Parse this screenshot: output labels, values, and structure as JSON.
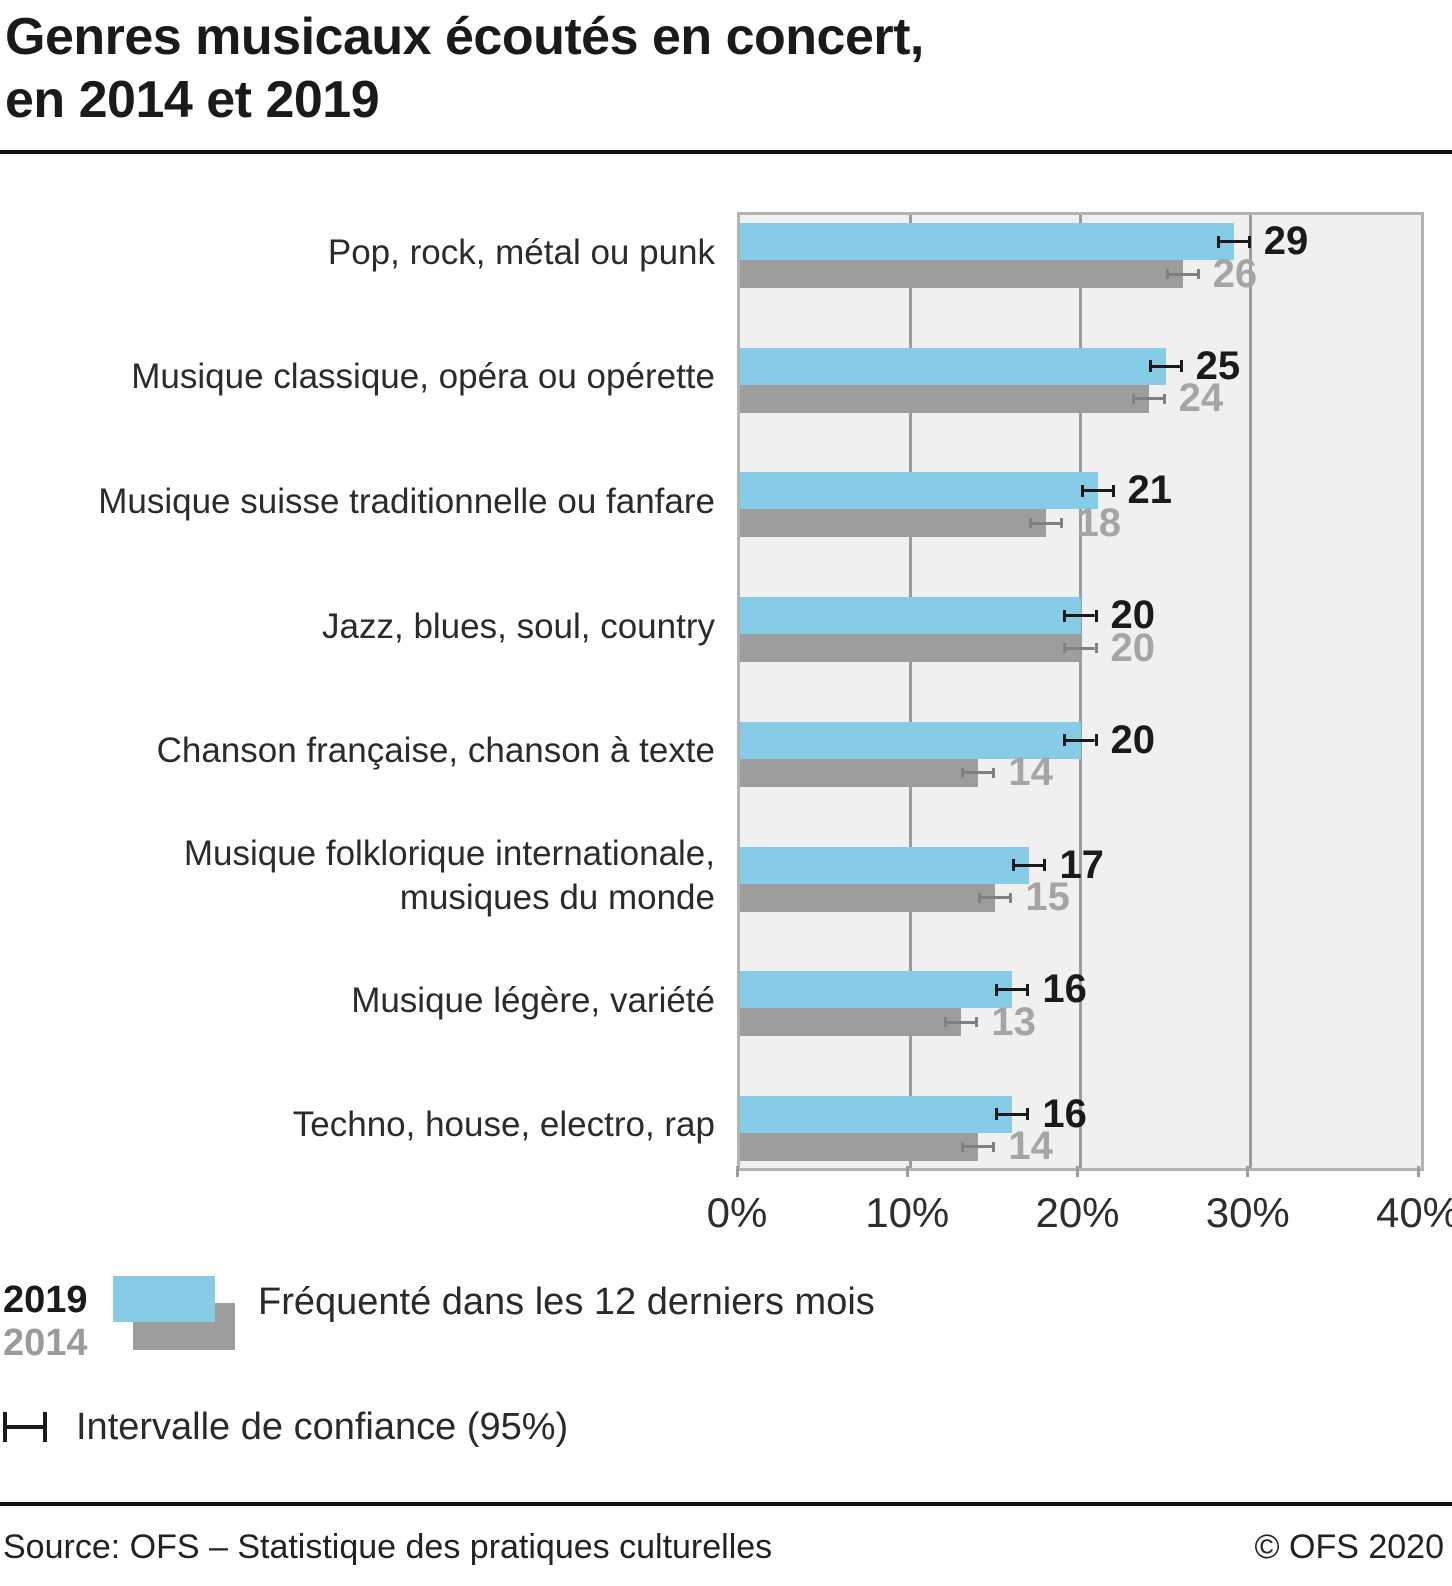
{
  "header": {
    "title_line1": "Genres musicaux écoutés en concert,",
    "title_line2": "en 2014 et 2019"
  },
  "chart_data": {
    "type": "bar",
    "orientation": "horizontal",
    "title": "Genres musicaux écoutés en concert, en 2014 et 2019",
    "categories": [
      "Pop, rock, métal ou punk",
      "Musique classique, opéra ou opérette",
      "Musique suisse traditionnelle ou fanfare",
      "Jazz, blues, soul, country",
      "Chanson française, chanson à texte",
      "Musique folklorique internationale,\nmusiques du monde",
      "Musique légère, variété",
      "Techno, house, electro, rap"
    ],
    "series": [
      {
        "name": "2019",
        "values": [
          29,
          25,
          21,
          20,
          20,
          17,
          16,
          16
        ],
        "color": "#86cce6",
        "ci_half_width": 1.0,
        "errorbar_color": "#1a1a1a",
        "value_label_color": "#1a1a1a"
      },
      {
        "name": "2014",
        "values": [
          26,
          24,
          18,
          20,
          14,
          15,
          13,
          14
        ],
        "color": "#9d9d9d",
        "ci_half_width": 1.0,
        "errorbar_color": "#808080",
        "value_label_color": "#a5a5a5"
      }
    ],
    "xlim": [
      0,
      40
    ],
    "x_tick_values": [
      0,
      10,
      20,
      30,
      40
    ],
    "x_tick_labels": [
      "0%",
      "10%",
      "20%",
      "30%",
      "40%"
    ],
    "grid_values": [
      10,
      20,
      30
    ],
    "grid": "vertical",
    "legend_position": "bottom",
    "ci_note": "Intervalle de confiance (95%)"
  },
  "legend": {
    "year_2019": "2019",
    "year_2014": "2014",
    "swatch_label": "Fréquenté dans les 12 derniers mois",
    "ci_label": "Intervalle de confiance (95%)"
  },
  "footer": {
    "source": "Source: OFS – Statistique des pratiques culturelles",
    "copyright": "© OFS 2020"
  },
  "colors": {
    "accent_blue_2019": "#86cce6",
    "gray_2014": "#9d9d9d",
    "plot_background": "#f0f0f0",
    "gridline": "#9c9c9c",
    "plot_border": "#b3b3b3",
    "text_dark": "#1a1a1a",
    "text_gray_label": "#a5a5a5"
  }
}
